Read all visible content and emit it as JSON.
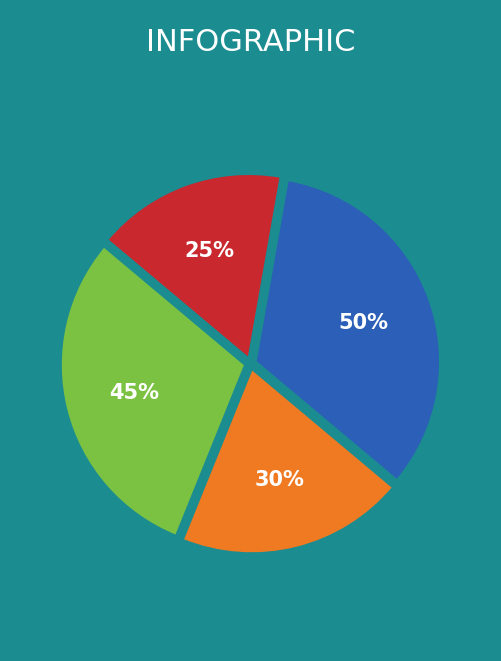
{
  "chart_data": {
    "type": "pie",
    "title": "INFOGRAPHIC",
    "values": [
      50,
      30,
      45,
      25
    ],
    "value_labels": [
      "50%",
      "30%",
      "45%",
      "25%"
    ],
    "colors": [
      "#2b5fb8",
      "#f07a22",
      "#7cc242",
      "#c8282e"
    ],
    "data_labels": true
  }
}
